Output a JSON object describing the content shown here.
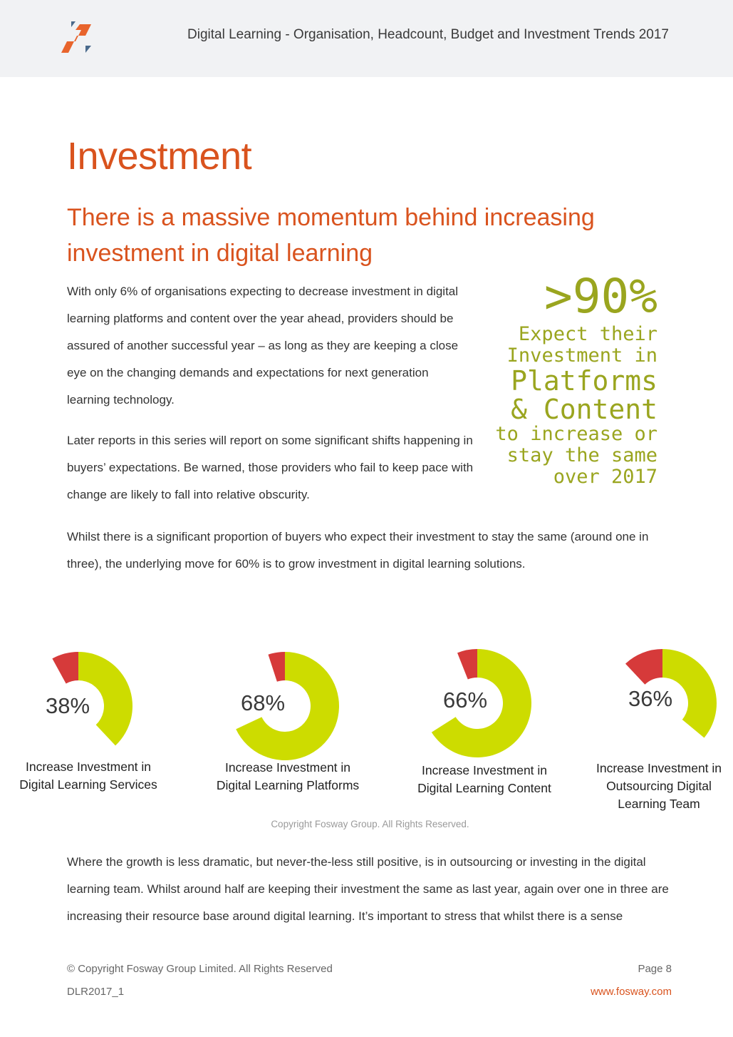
{
  "header": {
    "title": "Digital Learning - Organisation, Headcount, Budget and Investment Trends 2017",
    "logo_colors": [
      "#e8642c",
      "#4a6a8c"
    ]
  },
  "page": {
    "title": "Investment",
    "subtitle": "There is a massive momentum behind increasing investment in digital learning"
  },
  "body": {
    "p1": "With only 6% of organisations expecting to decrease investment in digital learning platforms and content over the year ahead, providers should be assured of another successful year – as long as they are keeping a close eye on the changing demands and expectations for next generation learning technology.",
    "p2": "Later reports in this series will report on some significant shifts happening in buyers’ expectations. Be warned, those providers who fail to keep pace with change are likely to fall into relative obscurity.",
    "p3": "Whilst there is a significant proportion of buyers who expect their investment to stay the same (around one in three), the underlying move for 60% is to grow investment in digital learning solutions.",
    "p4": "Where the growth is less dramatic, but never-the-less still positive, is in outsourcing or investing in the digital learning team. Whilst around half are keeping their investment the same as last year, again over one in three are increasing their resource base around digital learning. It’s important to stress that whilst there is a sense"
  },
  "callout": {
    "stat": ">90%",
    "line1": "Expect their",
    "line2": "Investment in",
    "line3": "Platforms",
    "line4": "& Content",
    "line5": "to increase or",
    "line6": "stay the same",
    "line7": "over 2017",
    "color": "#9aa51f"
  },
  "chart_data": {
    "type": "pie",
    "colors": {
      "increase": "#cddc00",
      "decrease": "#d63a3a"
    },
    "items": [
      {
        "pct_label": "38%",
        "label_line1": "Increase Investment in",
        "label_line2": "Digital Learning Services",
        "label_line3": "",
        "increase": 38,
        "decrease": 8
      },
      {
        "pct_label": "68%",
        "label_line1": "Increase Investment in",
        "label_line2": "Digital Learning Platforms",
        "label_line3": "",
        "increase": 68,
        "decrease": 5
      },
      {
        "pct_label": "66%",
        "label_line1": "Increase Investment in",
        "label_line2": "Digital Learning Content",
        "label_line3": "",
        "increase": 66,
        "decrease": 6
      },
      {
        "pct_label": "36%",
        "label_line1": "Increase Investment in",
        "label_line2": "Outsourcing Digital",
        "label_line3": "Learning  Team",
        "increase": 36,
        "decrease": 12
      }
    ]
  },
  "chart_source": "Copyright Fosway Group. All Rights Reserved.",
  "footer": {
    "copyright": "© Copyright Fosway Group Limited. All Rights Reserved",
    "doc_id": "DLR2017_1",
    "page": "Page  8",
    "url": "www.fosway.com"
  }
}
